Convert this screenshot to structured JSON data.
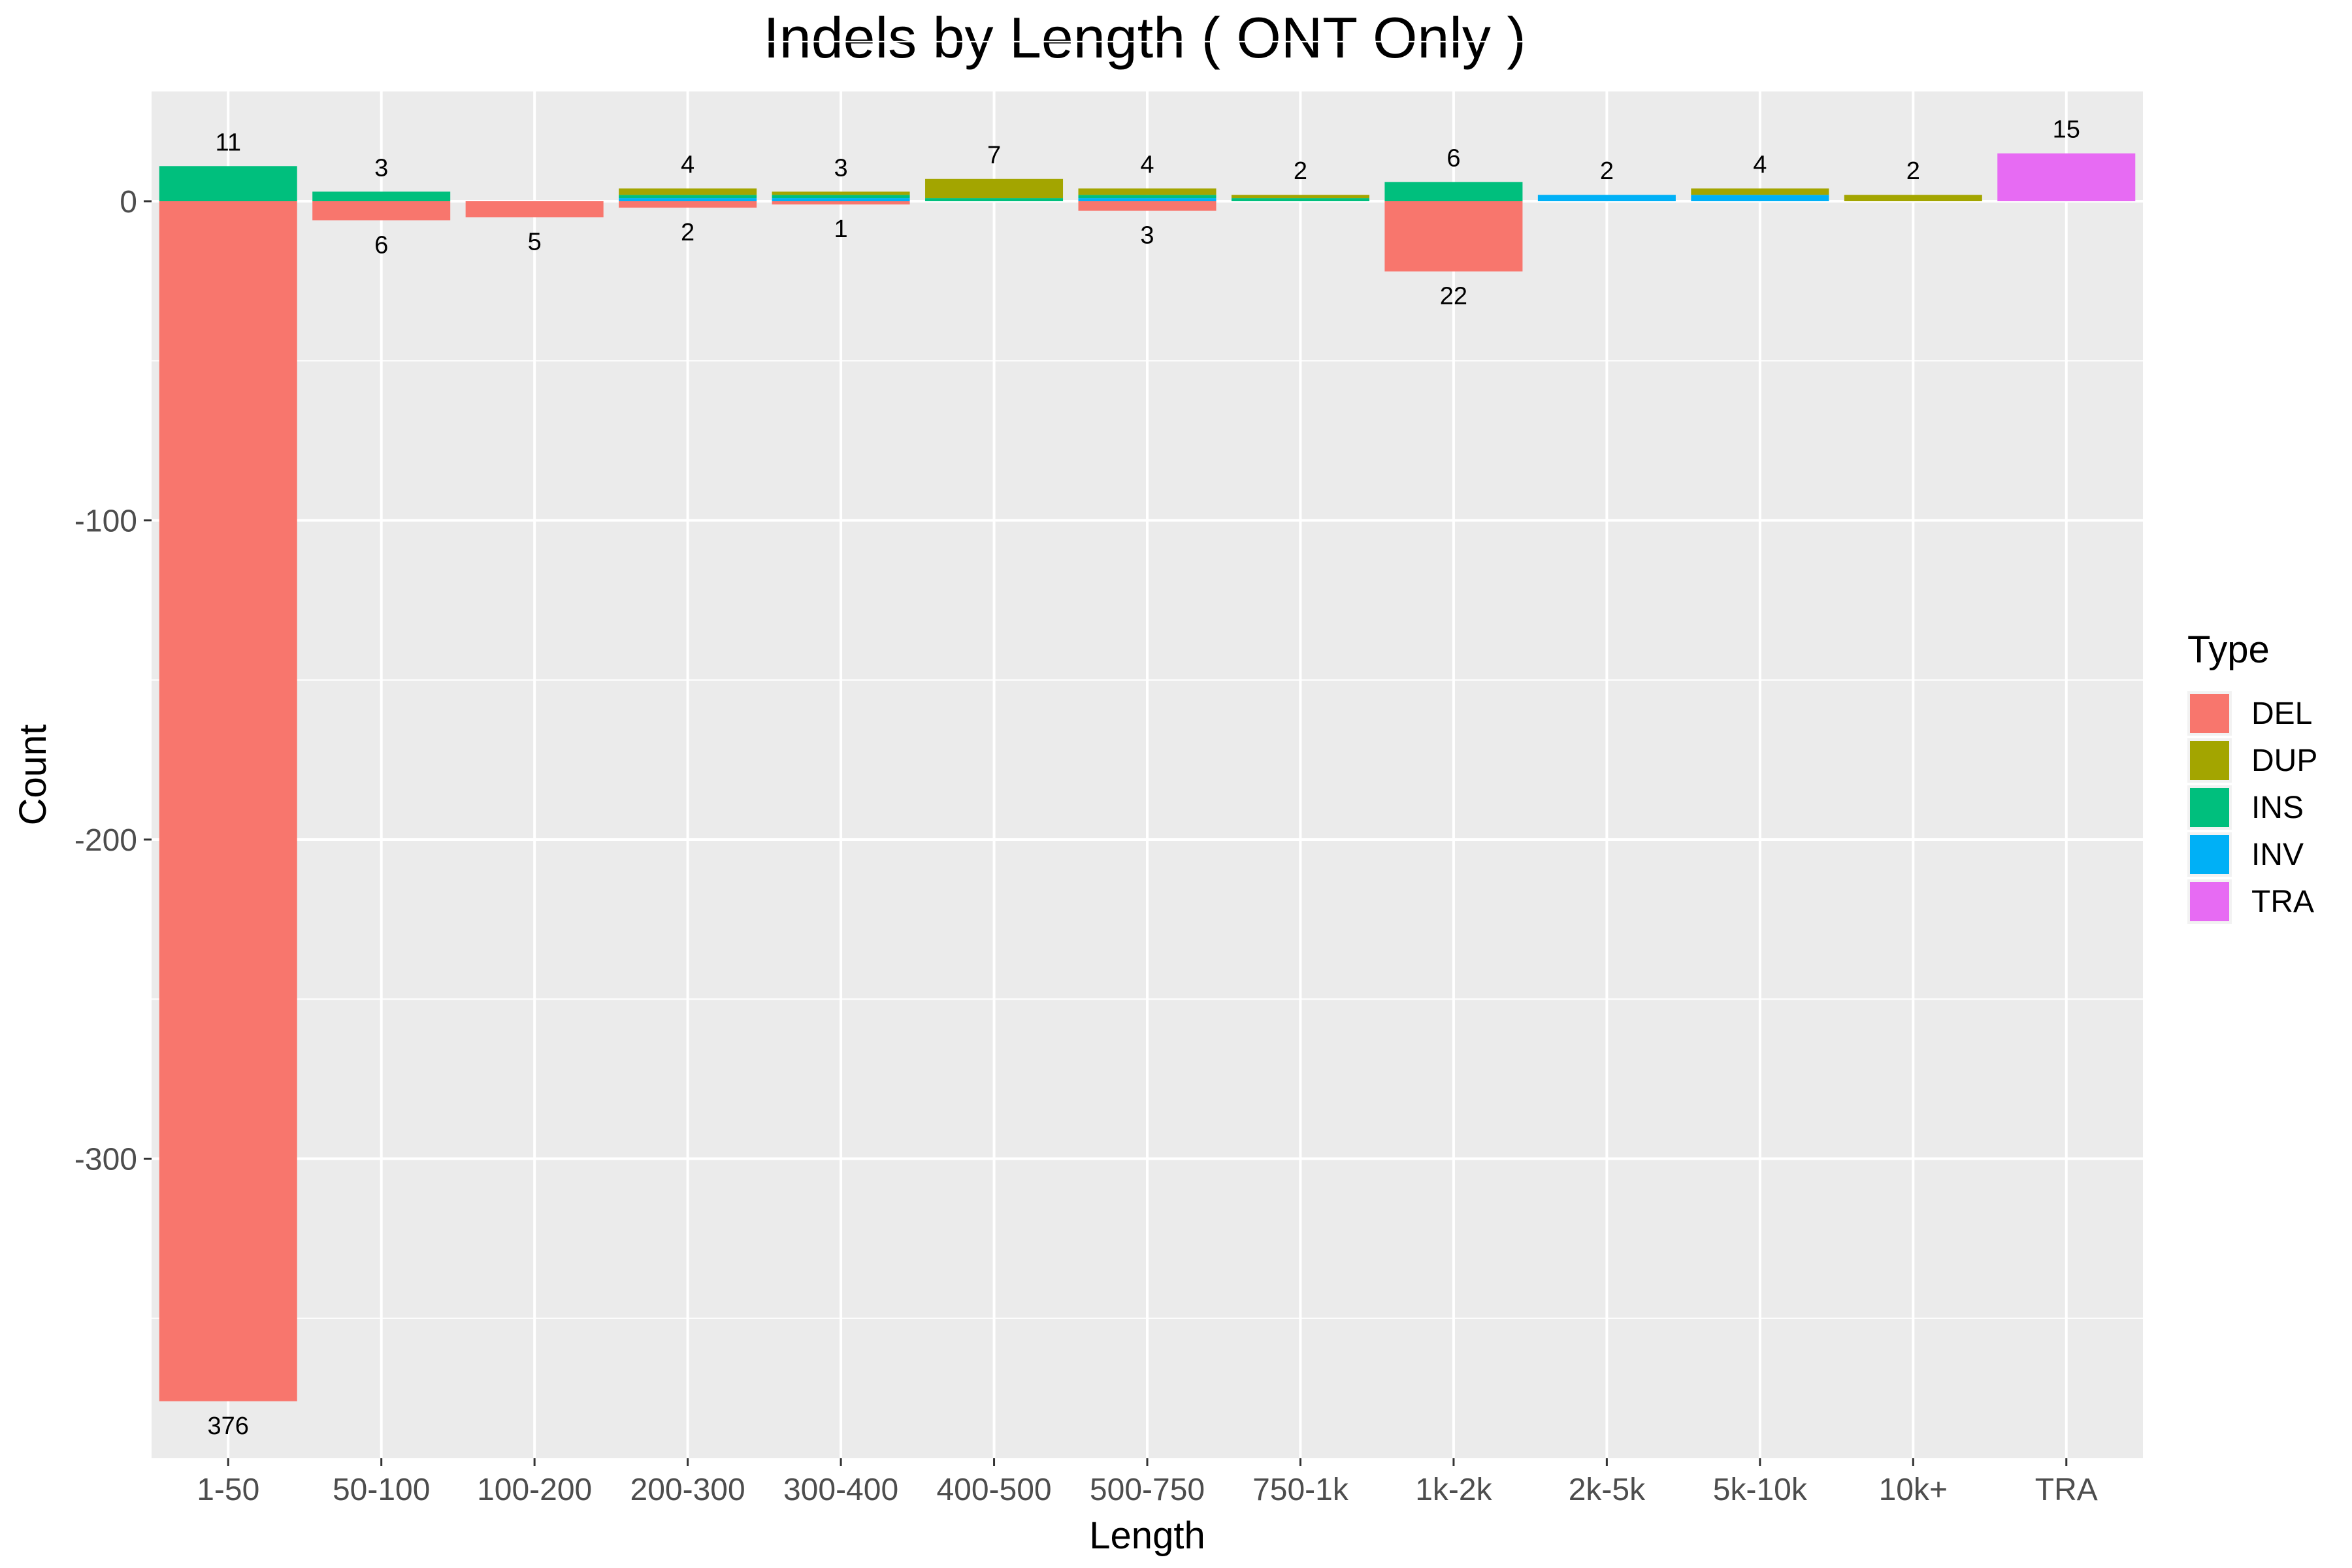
{
  "chart_data": {
    "type": "bar",
    "title": "Indels by Length ( ONT Only )",
    "xlabel": "Length",
    "ylabel": "Count",
    "ylim": [
      -390,
      35
    ],
    "yticks": [
      0,
      -100,
      -200,
      -300
    ],
    "grid": true,
    "legend": {
      "title": "Type",
      "position": "right",
      "entries": [
        {
          "name": "DEL",
          "color": "#F8766D"
        },
        {
          "name": "DUP",
          "color": "#A3A500"
        },
        {
          "name": "INS",
          "color": "#00BF7D"
        },
        {
          "name": "INV",
          "color": "#00B0F6"
        },
        {
          "name": "TRA",
          "color": "#E76BF3"
        }
      ]
    },
    "categories": [
      "1-50",
      "50-100",
      "100-200",
      "200-300",
      "300-400",
      "400-500",
      "500-750",
      "750-1k",
      "1k-2k",
      "2k-5k",
      "5k-10k",
      "10k+",
      "TRA"
    ],
    "series": [
      {
        "name": "DEL",
        "values": [
          -376,
          -6,
          -5,
          -2,
          -1,
          0,
          -3,
          0,
          -22,
          0,
          0,
          0,
          0
        ]
      },
      {
        "name": "DUP",
        "values": [
          0,
          0,
          0,
          2,
          1,
          6,
          2,
          1,
          0,
          0,
          2,
          2,
          0
        ]
      },
      {
        "name": "INS",
        "values": [
          11,
          3,
          0,
          1,
          1,
          1,
          1,
          1,
          6,
          0,
          0,
          0,
          0
        ]
      },
      {
        "name": "INV",
        "values": [
          0,
          0,
          0,
          1,
          1,
          0,
          1,
          0,
          0,
          2,
          2,
          0,
          0
        ]
      },
      {
        "name": "TRA",
        "values": [
          0,
          0,
          0,
          0,
          0,
          0,
          0,
          0,
          0,
          0,
          0,
          0,
          15
        ]
      }
    ],
    "positive_labels": [
      "11",
      "3",
      "",
      "4",
      "3",
      "7",
      "4",
      "2",
      "6",
      "2",
      "4",
      "2",
      "15"
    ],
    "negative_labels": [
      "376",
      "6",
      "5",
      "2",
      "1",
      "",
      "3",
      "",
      "22",
      "",
      "",
      "",
      ""
    ]
  }
}
